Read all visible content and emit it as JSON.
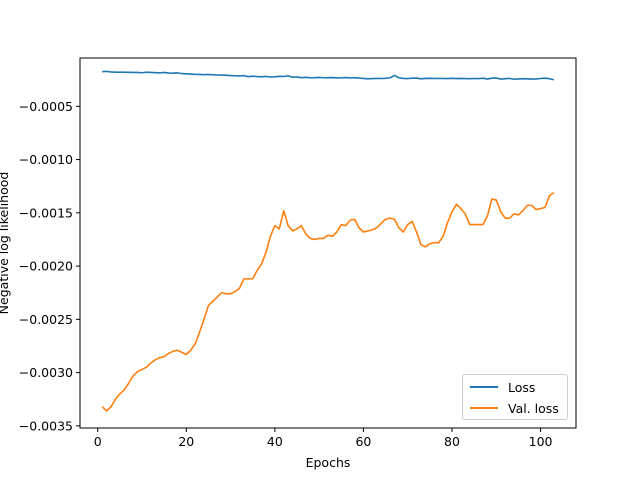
{
  "chart_data": {
    "type": "line",
    "title": "",
    "xlabel": "Epochs",
    "ylabel": "Negative log likelihood",
    "xlim": [
      -4,
      108
    ],
    "ylim": [
      -0.00352,
      -4.65e-05
    ],
    "xticks": [
      0,
      20,
      40,
      60,
      80,
      100
    ],
    "xtick_labels": [
      "0",
      "20",
      "40",
      "60",
      "80",
      "100"
    ],
    "yticks": [
      -0.0005,
      -0.001,
      -0.0015,
      -0.002,
      -0.0025,
      -0.003,
      -0.0035
    ],
    "ytick_labels": [
      "−0.0005",
      "−0.0010",
      "−0.0015",
      "−0.0020",
      "−0.0025",
      "−0.0030",
      "−0.0035"
    ],
    "grid": false,
    "legend_position": "lower right",
    "series": [
      {
        "name": "Loss",
        "color": "#1f77b4",
        "x": [
          1,
          2,
          3,
          4,
          5,
          6,
          7,
          8,
          9,
          10,
          11,
          12,
          13,
          14,
          15,
          16,
          17,
          18,
          19,
          20,
          21,
          22,
          23,
          24,
          25,
          26,
          27,
          28,
          29,
          30,
          31,
          32,
          33,
          34,
          35,
          36,
          37,
          38,
          39,
          40,
          41,
          42,
          43,
          44,
          45,
          46,
          47,
          48,
          49,
          50,
          51,
          52,
          53,
          54,
          55,
          56,
          57,
          58,
          59,
          60,
          61,
          62,
          63,
          64,
          65,
          66,
          67,
          68,
          69,
          70,
          71,
          72,
          73,
          74,
          75,
          76,
          77,
          78,
          79,
          80,
          81,
          82,
          83,
          84,
          85,
          86,
          87,
          88,
          89,
          90,
          91,
          92,
          93,
          94,
          95,
          96,
          97,
          98,
          99,
          100,
          101,
          102,
          103
        ],
        "values": [
          -0.000175,
          -0.000172,
          -0.000177,
          -0.00018,
          -0.00018,
          -0.00018,
          -0.000181,
          -0.000182,
          -0.000182,
          -0.000185,
          -0.00018,
          -0.000182,
          -0.000184,
          -0.000186,
          -0.000182,
          -0.000188,
          -0.000189,
          -0.000186,
          -0.000193,
          -0.000195,
          -0.000197,
          -0.0002,
          -0.000201,
          -0.000203,
          -0.000201,
          -0.000204,
          -0.000206,
          -0.000207,
          -0.000209,
          -0.000211,
          -0.000213,
          -0.000215,
          -0.000212,
          -0.000222,
          -0.000217,
          -0.000221,
          -0.000223,
          -0.00022,
          -0.000225,
          -0.000223,
          -0.000218,
          -0.00022,
          -0.000214,
          -0.000227,
          -0.000224,
          -0.000231,
          -0.000228,
          -0.000232,
          -0.000231,
          -0.000229,
          -0.000232,
          -0.000231,
          -0.00023,
          -0.000234,
          -0.000233,
          -0.00023,
          -0.000233,
          -0.000231,
          -0.000235,
          -0.000238,
          -0.000242,
          -0.00024,
          -0.000238,
          -0.000239,
          -0.000237,
          -0.000233,
          -0.00021,
          -0.000232,
          -0.000238,
          -0.00024,
          -0.000236,
          -0.000235,
          -0.000242,
          -0.000238,
          -0.000237,
          -0.000239,
          -0.000238,
          -0.000239,
          -0.00024,
          -0.000237,
          -0.00024,
          -0.000238,
          -0.00024,
          -0.000241,
          -0.000239,
          -0.00024,
          -0.000236,
          -0.000244,
          -0.000236,
          -0.000234,
          -0.000244,
          -0.000241,
          -0.000238,
          -0.000246,
          -0.000243,
          -0.000241,
          -0.000242,
          -0.000244,
          -0.000243,
          -0.000239,
          -0.000236,
          -0.000241,
          -0.000251
        ]
      },
      {
        "name": "Val. loss",
        "color": "#ff7f0e",
        "x": [
          1,
          2,
          3,
          4,
          5,
          6,
          7,
          8,
          9,
          10,
          11,
          12,
          13,
          14,
          15,
          16,
          17,
          18,
          19,
          20,
          21,
          22,
          23,
          24,
          25,
          26,
          27,
          28,
          29,
          30,
          31,
          32,
          33,
          34,
          35,
          36,
          37,
          38,
          39,
          40,
          41,
          42,
          43,
          44,
          45,
          46,
          47,
          48,
          49,
          50,
          51,
          52,
          53,
          54,
          55,
          56,
          57,
          58,
          59,
          60,
          61,
          62,
          63,
          64,
          65,
          66,
          67,
          68,
          69,
          70,
          71,
          72,
          73,
          74,
          75,
          76,
          77,
          78,
          79,
          80,
          81,
          82,
          83,
          84,
          85,
          86,
          87,
          88,
          89,
          90,
          91,
          92,
          93,
          94,
          95,
          96,
          97,
          98,
          99,
          100,
          101,
          102,
          103
        ],
        "values": [
          -0.00332,
          -0.00336,
          -0.00332,
          -0.00325,
          -0.0032,
          -0.00316,
          -0.0031,
          -0.00303,
          -0.00299,
          -0.00297,
          -0.00295,
          -0.00291,
          -0.00288,
          -0.00286,
          -0.00285,
          -0.00282,
          -0.0028,
          -0.00279,
          -0.00281,
          -0.00283,
          -0.00279,
          -0.00273,
          -0.00262,
          -0.0025,
          -0.00237,
          -0.00233,
          -0.00229,
          -0.00225,
          -0.00226,
          -0.00226,
          -0.00224,
          -0.00221,
          -0.00212,
          -0.00212,
          -0.00212,
          -0.00204,
          -0.00198,
          -0.00187,
          -0.00172,
          -0.00162,
          -0.00165,
          -0.00148,
          -0.00162,
          -0.00167,
          -0.00165,
          -0.00162,
          -0.0017,
          -0.00174,
          -0.00175,
          -0.00174,
          -0.00174,
          -0.00171,
          -0.00172,
          -0.00168,
          -0.00161,
          -0.00162,
          -0.00157,
          -0.00156,
          -0.00164,
          -0.00168,
          -0.00167,
          -0.00166,
          -0.00164,
          -0.0016,
          -0.00156,
          -0.00155,
          -0.00156,
          -0.00164,
          -0.00168,
          -0.00161,
          -0.00158,
          -0.00168,
          -0.0018,
          -0.00182,
          -0.00179,
          -0.00178,
          -0.00178,
          -0.00172,
          -0.00159,
          -0.00149,
          -0.00142,
          -0.00146,
          -0.00151,
          -0.00161,
          -0.00161,
          -0.00161,
          -0.00161,
          -0.00153,
          -0.00137,
          -0.00138,
          -0.00149,
          -0.00155,
          -0.00155,
          -0.00151,
          -0.00152,
          -0.00148,
          -0.00143,
          -0.00143,
          -0.00147,
          -0.00146,
          -0.00145,
          -0.00134,
          -0.00131
        ]
      }
    ]
  }
}
